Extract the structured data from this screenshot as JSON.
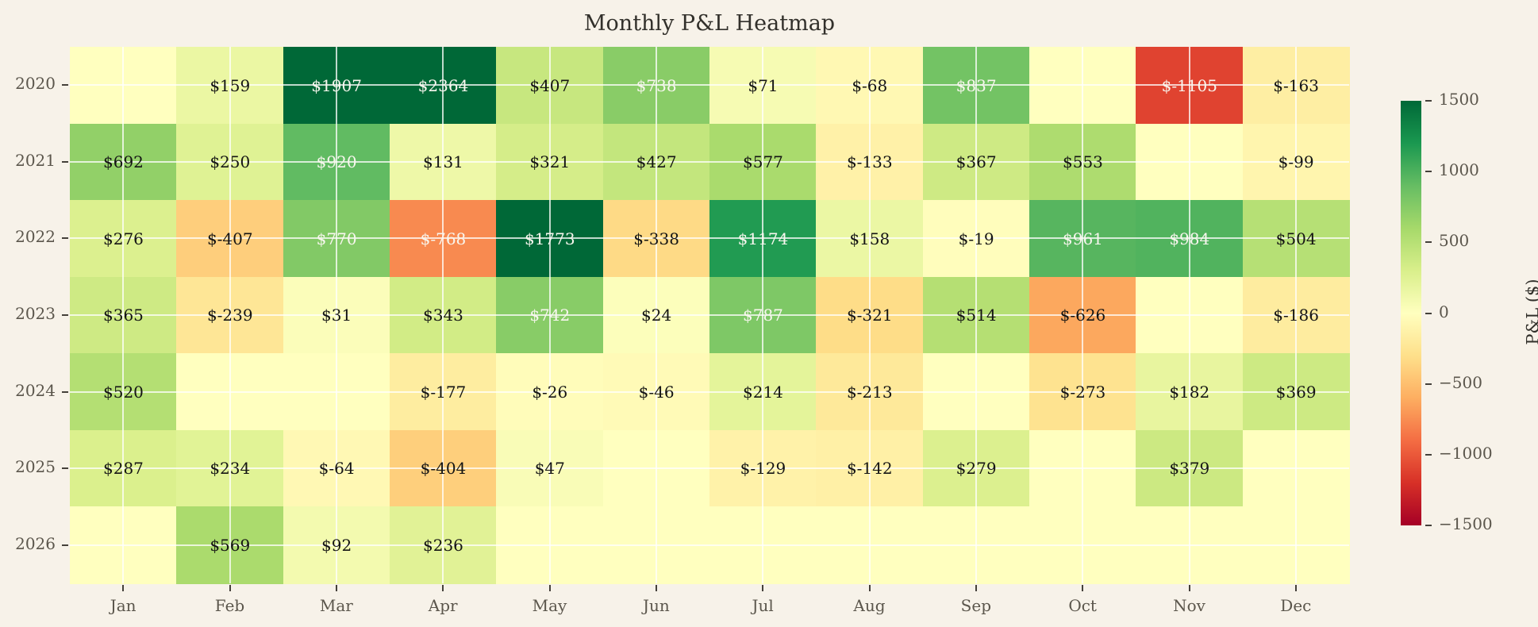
{
  "title": "Monthly P&L Heatmap",
  "chart_data": {
    "type": "heatmap",
    "title": "Monthly P&L Heatmap",
    "x_labels": [
      "Jan",
      "Feb",
      "Mar",
      "Apr",
      "May",
      "Jun",
      "Jul",
      "Aug",
      "Sep",
      "Oct",
      "Nov",
      "Dec"
    ],
    "y_labels": [
      "2020",
      "2021",
      "2022",
      "2023",
      "2024",
      "2025",
      "2026"
    ],
    "values": [
      [
        null,
        159,
        1907,
        2364,
        407,
        738,
        71,
        -68,
        837,
        null,
        -1105,
        -163
      ],
      [
        692,
        250,
        920,
        131,
        321,
        427,
        577,
        -133,
        367,
        553,
        null,
        -99
      ],
      [
        276,
        -407,
        770,
        -768,
        1773,
        -338,
        1174,
        158,
        -19,
        961,
        984,
        504
      ],
      [
        365,
        -239,
        31,
        343,
        742,
        24,
        787,
        -321,
        514,
        -626,
        null,
        -186
      ],
      [
        520,
        null,
        null,
        -177,
        -26,
        -46,
        214,
        -213,
        null,
        -273,
        182,
        369
      ],
      [
        287,
        234,
        -64,
        -404,
        47,
        null,
        -129,
        -142,
        279,
        null,
        379,
        null
      ],
      [
        null,
        569,
        92,
        236,
        null,
        null,
        null,
        null,
        null,
        null,
        null,
        null
      ]
    ],
    "annotation_prefix": "$",
    "white_text_threshold": 700,
    "grid": true,
    "colorbar": {
      "label": "P&L ($)",
      "vmin": -1500,
      "vmax": 1500,
      "ticks": [
        1500,
        1000,
        500,
        0,
        -500,
        -1000,
        -1500
      ]
    },
    "colormap": {
      "name": "RdYlGn",
      "stops": [
        [
          0.0,
          "#a50026"
        ],
        [
          0.1,
          "#d73027"
        ],
        [
          0.2,
          "#f46d43"
        ],
        [
          0.3,
          "#fdae61"
        ],
        [
          0.4,
          "#fee08b"
        ],
        [
          0.5,
          "#ffffbf"
        ],
        [
          0.6,
          "#d9ef8b"
        ],
        [
          0.7,
          "#a6d96a"
        ],
        [
          0.8,
          "#66bd63"
        ],
        [
          0.9,
          "#1a9850"
        ],
        [
          1.0,
          "#006837"
        ]
      ]
    }
  },
  "colors": {
    "background": "#f7f2e9",
    "title": "#32302b",
    "tick_label": "#5b564c",
    "tick_mark": "#44403a",
    "annotation_dark": "#141414",
    "annotation_light": "#f8f6ee",
    "grid_line": "rgba(255,255,255,0.75)"
  }
}
